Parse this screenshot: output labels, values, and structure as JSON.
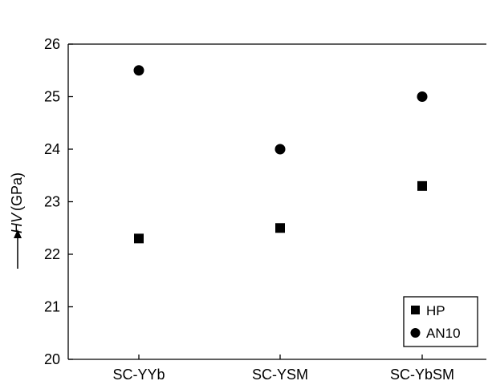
{
  "chart_data": {
    "type": "scatter",
    "categories": [
      "SC-YYb",
      "SC-YSM",
      "SC-YbSM"
    ],
    "series": [
      {
        "name": "HP",
        "marker": "square",
        "values": [
          22.3,
          22.5,
          23.3
        ]
      },
      {
        "name": "AN10",
        "marker": "circle",
        "values": [
          25.5,
          24.0,
          25.0
        ]
      }
    ],
    "ylabel_symbol": "HV",
    "ylabel_unit": "(GPa)",
    "ylim": [
      20,
      26
    ],
    "yticks": [
      "20",
      "21",
      "22",
      "23",
      "24",
      "25",
      "26"
    ],
    "grid": false,
    "legend_position": "bottom-right",
    "marker_color": "#000000"
  }
}
